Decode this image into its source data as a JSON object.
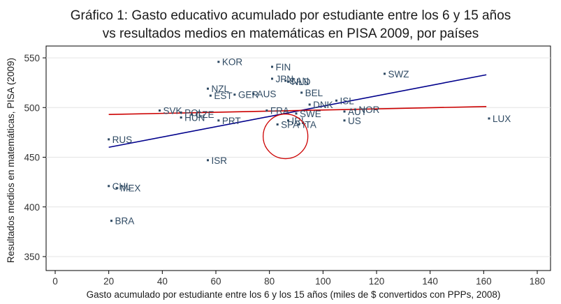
{
  "chart_data": {
    "type": "scatter",
    "title": [
      "Gráfico 1: Gasto educativo acumulado por estudiante entre los 6 y 15 años",
      "vs resultados medios en matemáticas en PISA 2009, por países"
    ],
    "xlabel": "Gasto acumulado por estudiante entre los 6 y los 15 años (miles de $ convertidos con PPPs, 2008)",
    "ylabel": "Resultados medios en matemáticas, PISA (2009)",
    "xlim": [
      0,
      180
    ],
    "ylim": [
      340,
      560
    ],
    "xticks": [
      0,
      20,
      40,
      60,
      80,
      100,
      120,
      140,
      160,
      180
    ],
    "yticks": [
      350,
      400,
      450,
      500,
      550
    ],
    "grid": "horizontal",
    "points": [
      {
        "label": "KOR",
        "x": 61,
        "y": 546
      },
      {
        "label": "FIN",
        "x": 81,
        "y": 541
      },
      {
        "label": "JPN",
        "x": 81,
        "y": 529
      },
      {
        "label": "CAN",
        "x": 86,
        "y": 527
      },
      {
        "label": "NLD",
        "x": 87,
        "y": 526
      },
      {
        "label": "SWZ",
        "x": 123,
        "y": 534
      },
      {
        "label": "NZL",
        "x": 57,
        "y": 519
      },
      {
        "label": "AUS",
        "x": 74,
        "y": 514
      },
      {
        "label": "EST",
        "x": 58,
        "y": 512
      },
      {
        "label": "GER",
        "x": 67,
        "y": 513
      },
      {
        "label": "BEL",
        "x": 92,
        "y": 515
      },
      {
        "label": "ISL",
        "x": 105,
        "y": 507
      },
      {
        "label": "SWE",
        "x": 90,
        "y": 494
      },
      {
        "label": "DNK",
        "x": 95,
        "y": 503
      },
      {
        "label": "NOR",
        "x": 112,
        "y": 498
      },
      {
        "label": "SVK",
        "x": 39,
        "y": 497
      },
      {
        "label": "POL",
        "x": 47,
        "y": 495
      },
      {
        "label": "CZE",
        "x": 51,
        "y": 493
      },
      {
        "label": "HUN",
        "x": 47,
        "y": 490
      },
      {
        "label": "PRT",
        "x": 61,
        "y": 487
      },
      {
        "label": "FRA",
        "x": 79,
        "y": 497
      },
      {
        "label": "IRL",
        "x": 87,
        "y": 487
      },
      {
        "label": "AUT",
        "x": 108,
        "y": 496
      },
      {
        "label": "US",
        "x": 108,
        "y": 487
      },
      {
        "label": "SPA",
        "x": 83,
        "y": 483
      },
      {
        "label": "ITA",
        "x": 91,
        "y": 483
      },
      {
        "label": "LUX",
        "x": 162,
        "y": 489
      },
      {
        "label": "RUS",
        "x": 20,
        "y": 468
      },
      {
        "label": "ISR",
        "x": 57,
        "y": 447
      },
      {
        "label": "MEX",
        "x": 23,
        "y": 419
      },
      {
        "label": "CHL",
        "x": 20,
        "y": 421
      },
      {
        "label": "BRA",
        "x": 21,
        "y": 386
      }
    ],
    "lines": [
      {
        "color": "#00008b",
        "x": [
          20,
          161
        ],
        "y": [
          460,
          533
        ]
      },
      {
        "color": "#cc0000",
        "x": [
          20,
          161
        ],
        "y": [
          493,
          501
        ]
      }
    ],
    "annotation": {
      "type": "circle",
      "color": "#cc0000",
      "x": 86,
      "y": 471
    }
  }
}
